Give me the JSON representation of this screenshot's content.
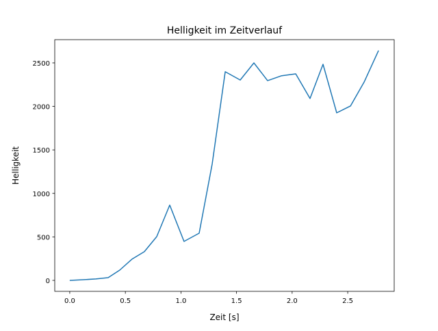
{
  "chart_data": {
    "type": "line",
    "title": "Helligkeit im Zeitverlauf",
    "xlabel": "Zeit [s]",
    "ylabel": "Helligkeit",
    "xlim": [
      -0.135,
      2.918
    ],
    "ylim": [
      -126,
      2767
    ],
    "xticks": [
      0.0,
      0.5,
      1.0,
      1.5,
      2.0,
      2.5
    ],
    "xtick_labels": [
      "0.0",
      "0.5",
      "1.0",
      "1.5",
      "2.0",
      "2.5"
    ],
    "yticks": [
      0,
      500,
      1000,
      1500,
      2000,
      2500
    ],
    "ytick_labels": [
      "0",
      "500",
      "1000",
      "1500",
      "2000",
      "2500"
    ],
    "grid": false,
    "series": [
      {
        "name": "Helligkeit",
        "color": "#1f77b4",
        "x": [
          0.0,
          0.123,
          0.234,
          0.345,
          0.449,
          0.56,
          0.671,
          0.782,
          0.899,
          1.028,
          1.164,
          1.281,
          1.398,
          1.533,
          1.656,
          1.779,
          1.902,
          2.032,
          2.161,
          2.278,
          2.401,
          2.525,
          2.648,
          2.777
        ],
        "y": [
          0,
          8,
          16,
          31,
          118,
          244,
          330,
          503,
          865,
          448,
          542,
          1336,
          2398,
          2303,
          2500,
          2296,
          2351,
          2374,
          2091,
          2484,
          1926,
          2005,
          2280,
          2642
        ]
      }
    ]
  }
}
